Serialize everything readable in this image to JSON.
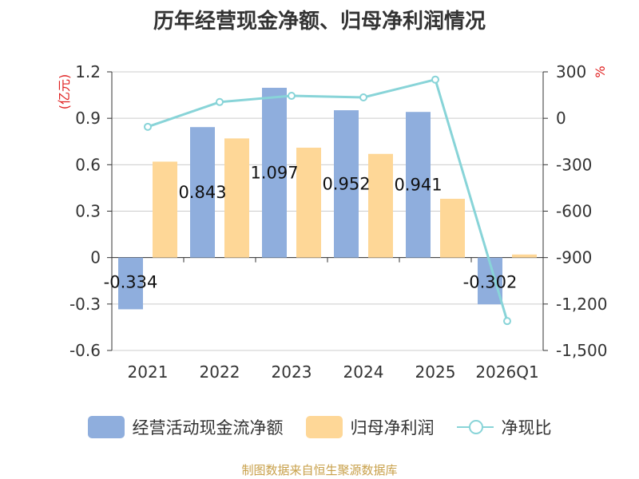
{
  "title": "历年经营现金净额、归母净利润情况",
  "chart_data": {
    "type": "bar",
    "categories": [
      "2021",
      "2022",
      "2023",
      "2024",
      "2025",
      "2026Q1"
    ],
    "series": [
      {
        "name": "经营活动现金流净额",
        "type": "bar",
        "axis": "left",
        "color": "#8faedd",
        "values": [
          -0.334,
          0.843,
          1.097,
          0.952,
          0.941,
          -0.302
        ],
        "labels": [
          "-0.334",
          "0.843",
          "1.097",
          "0.952",
          "0.941",
          "-0.302"
        ]
      },
      {
        "name": "归母净利润",
        "type": "bar",
        "axis": "left",
        "color": "#fed797",
        "values": [
          0.62,
          0.77,
          0.71,
          0.67,
          0.38,
          0.02
        ]
      },
      {
        "name": "净现比",
        "type": "line",
        "axis": "right",
        "color": "#88d4d8",
        "values": [
          -55,
          105,
          145,
          135,
          250,
          -1310
        ]
      }
    ],
    "y_left": {
      "label": "(亿元)",
      "min": -0.6,
      "max": 1.2,
      "ticks": [
        -0.6,
        -0.3,
        0,
        0.3,
        0.6,
        0.9,
        1.2
      ],
      "tick_labels": [
        "-0.6",
        "-0.3",
        "0",
        "0.3",
        "0.6",
        "0.9",
        "1.2"
      ]
    },
    "y_right": {
      "label": "%",
      "min": -1500,
      "max": 300,
      "ticks": [
        -1500,
        -1200,
        -900,
        -600,
        -300,
        0,
        300
      ],
      "tick_labels": [
        "-1,500",
        "-1,200",
        "-900",
        "-600",
        "-300",
        "0",
        "300"
      ]
    },
    "grid": true,
    "legend": "bottom"
  },
  "legend": {
    "cash": "经营活动现金流净额",
    "profit": "归母净利润",
    "ratio": "净现比"
  },
  "source": "制图数据来自恒生聚源数据库"
}
